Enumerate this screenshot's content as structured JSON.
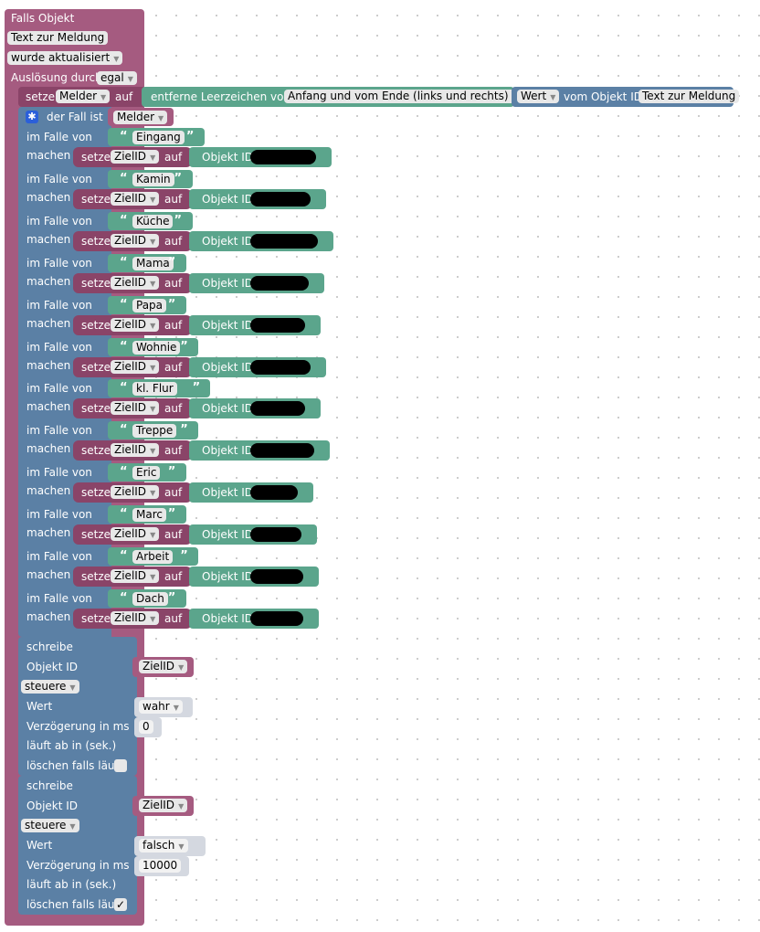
{
  "header": {
    "title": "Falls Objekt",
    "trigger_object": "Text zur Meldung",
    "trigger_mode": "wurde aktualisiert",
    "ausloesung_label": "Auslösung durch",
    "ausloesung_value": "egal"
  },
  "set_melder": {
    "setze": "setze",
    "var": "Melder",
    "auf": "auf",
    "trim_label": "entferne Leerzeichen vom",
    "trim_mode": "Anfang und vom Ende (links und rechts)",
    "value_field": "Wert",
    "vom_objekt_id": "vom Objekt ID",
    "object": "Text zur Meldung"
  },
  "switch": {
    "header_label": "der Fall ist",
    "var": "Melder",
    "case_label": "im Falle von",
    "do_label": "machen",
    "setze": "setze",
    "target_var": "ZielID",
    "auf": "auf",
    "objekt_id": "Objekt ID",
    "open_quote": "“",
    "close_quote": "”",
    "cases": [
      {
        "value": "Eingang"
      },
      {
        "value": "Kamin"
      },
      {
        "value": "Küche"
      },
      {
        "value": "Mama"
      },
      {
        "value": "Papa"
      },
      {
        "value": "Wohnie"
      },
      {
        "value": "kl. Flur"
      },
      {
        "value": "Treppe"
      },
      {
        "value": "Eric"
      },
      {
        "value": "Marc"
      },
      {
        "value": "Arbeit"
      },
      {
        "value": "Dach"
      }
    ]
  },
  "writes": [
    {
      "title": "schreibe",
      "objekt_id_label": "Objekt ID",
      "objekt_id_value": "ZielID",
      "mode": "steuere",
      "wert_label": "Wert",
      "wert_value": "wahr",
      "delay_label": "Verzögerung in ms",
      "delay_value": "0",
      "expire_label": "läuft ab in (sek.)",
      "clear_label": "löschen falls läuft",
      "clear_checked": ""
    },
    {
      "title": "schreibe",
      "objekt_id_label": "Objekt ID",
      "objekt_id_value": "ZielID",
      "mode": "steuere",
      "wert_label": "Wert",
      "wert_value": "falsch",
      "delay_label": "Verzögerung in ms",
      "delay_value": "10000",
      "expire_label": "läuft ab in (sek.)",
      "clear_label": "löschen falls läuft",
      "clear_checked": "✓"
    }
  ],
  "colors": {
    "trigger_block": "#a55b80",
    "logic_block": "#5b80a5",
    "text_block": "#5ba58c",
    "gear_icon": "#2b5fd9"
  }
}
